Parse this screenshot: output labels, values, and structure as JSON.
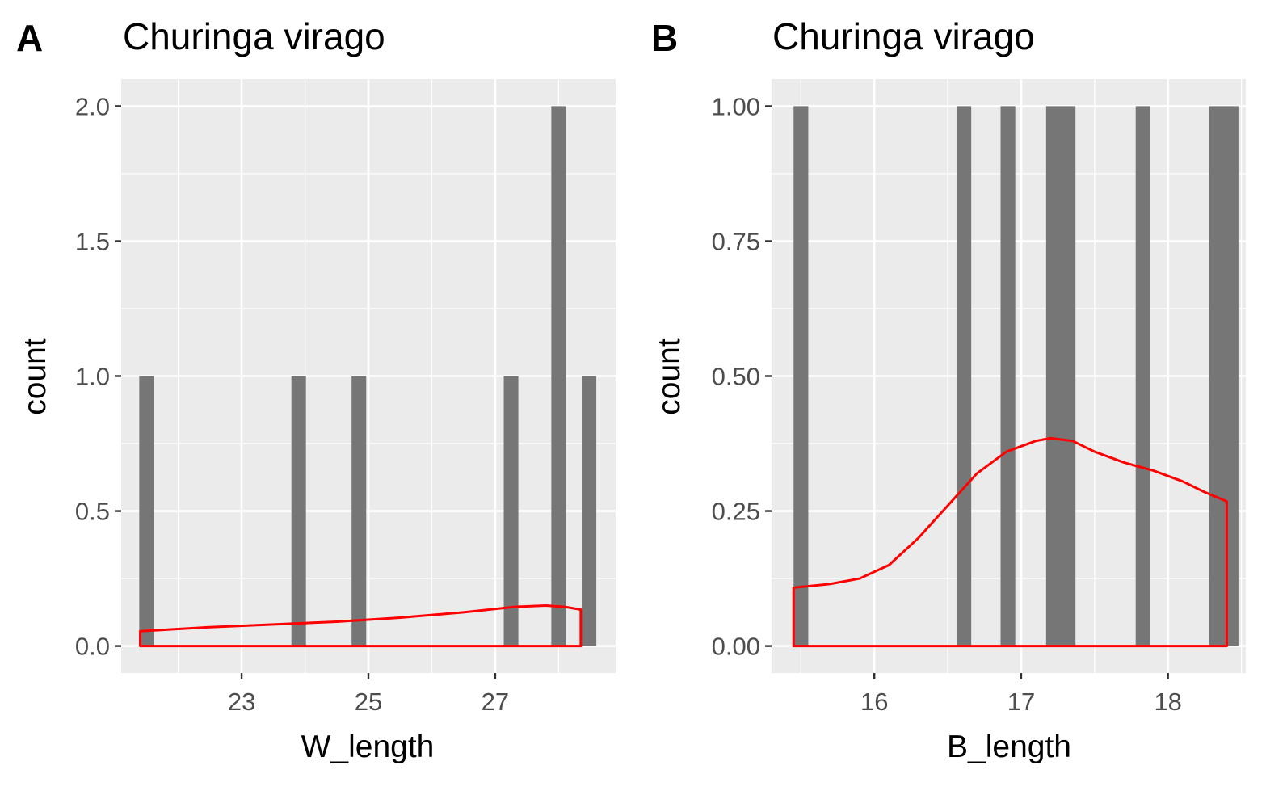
{
  "chart_data": [
    {
      "type": "bar",
      "panel": "A",
      "title": "Churinga virago",
      "xlabel": "W_length",
      "ylabel": "count",
      "xlim": [
        21.1,
        28.9
      ],
      "ylim": [
        -0.1,
        2.1
      ],
      "x_ticks": [
        23,
        25,
        27
      ],
      "x_tick_labels": [
        "23",
        "25",
        "27"
      ],
      "y_ticks": [
        0.0,
        0.5,
        1.0,
        1.5,
        2.0
      ],
      "y_tick_labels": [
        "0.0",
        "0.5",
        "1.0",
        "1.5",
        "2.0"
      ],
      "grid": true,
      "bar_color": "#767676",
      "bin_width": 0.23,
      "bars": [
        {
          "x": 21.5,
          "count": 1
        },
        {
          "x": 23.9,
          "count": 1
        },
        {
          "x": 24.85,
          "count": 1
        },
        {
          "x": 27.25,
          "count": 1
        },
        {
          "x": 28.0,
          "count": 2
        },
        {
          "x": 28.48,
          "count": 1
        }
      ],
      "density_line": {
        "color": "#ff0000",
        "x": [
          21.4,
          22.5,
          23.5,
          24.5,
          25.5,
          26.5,
          27.3,
          27.8,
          28.1,
          28.35
        ],
        "y": [
          0.055,
          0.07,
          0.08,
          0.09,
          0.105,
          0.125,
          0.145,
          0.15,
          0.145,
          0.135
        ]
      }
    },
    {
      "type": "bar",
      "panel": "B",
      "title": "Churinga virago",
      "xlabel": "B_length",
      "ylabel": "count",
      "xlim": [
        15.3,
        18.53
      ],
      "ylim": [
        -0.05,
        1.05
      ],
      "x_ticks": [
        16,
        17,
        18
      ],
      "x_tick_labels": [
        "16",
        "17",
        "18"
      ],
      "y_ticks": [
        0.0,
        0.25,
        0.5,
        0.75,
        1.0
      ],
      "y_tick_labels": [
        "0.00",
        "0.25",
        "0.50",
        "0.75",
        "1.00"
      ],
      "grid": true,
      "bar_color": "#767676",
      "bars": [
        {
          "x0": 15.45,
          "x1": 15.55,
          "count": 1
        },
        {
          "x0": 16.56,
          "x1": 16.66,
          "count": 1
        },
        {
          "x0": 16.86,
          "x1": 16.96,
          "count": 1
        },
        {
          "x0": 17.17,
          "x1": 17.37,
          "count": 1
        },
        {
          "x0": 17.78,
          "x1": 17.88,
          "count": 1
        },
        {
          "x0": 18.28,
          "x1": 18.48,
          "count": 1
        }
      ],
      "density_line": {
        "color": "#ff0000",
        "x": [
          15.45,
          15.7,
          15.9,
          16.1,
          16.3,
          16.5,
          16.7,
          16.9,
          17.1,
          17.2,
          17.35,
          17.5,
          17.7,
          17.9,
          18.1,
          18.25,
          18.4
        ],
        "y": [
          0.108,
          0.115,
          0.125,
          0.15,
          0.2,
          0.26,
          0.32,
          0.36,
          0.38,
          0.385,
          0.38,
          0.36,
          0.34,
          0.325,
          0.305,
          0.285,
          0.268
        ]
      }
    }
  ],
  "panels": [
    {
      "letter": "A"
    },
    {
      "letter": "B"
    }
  ]
}
